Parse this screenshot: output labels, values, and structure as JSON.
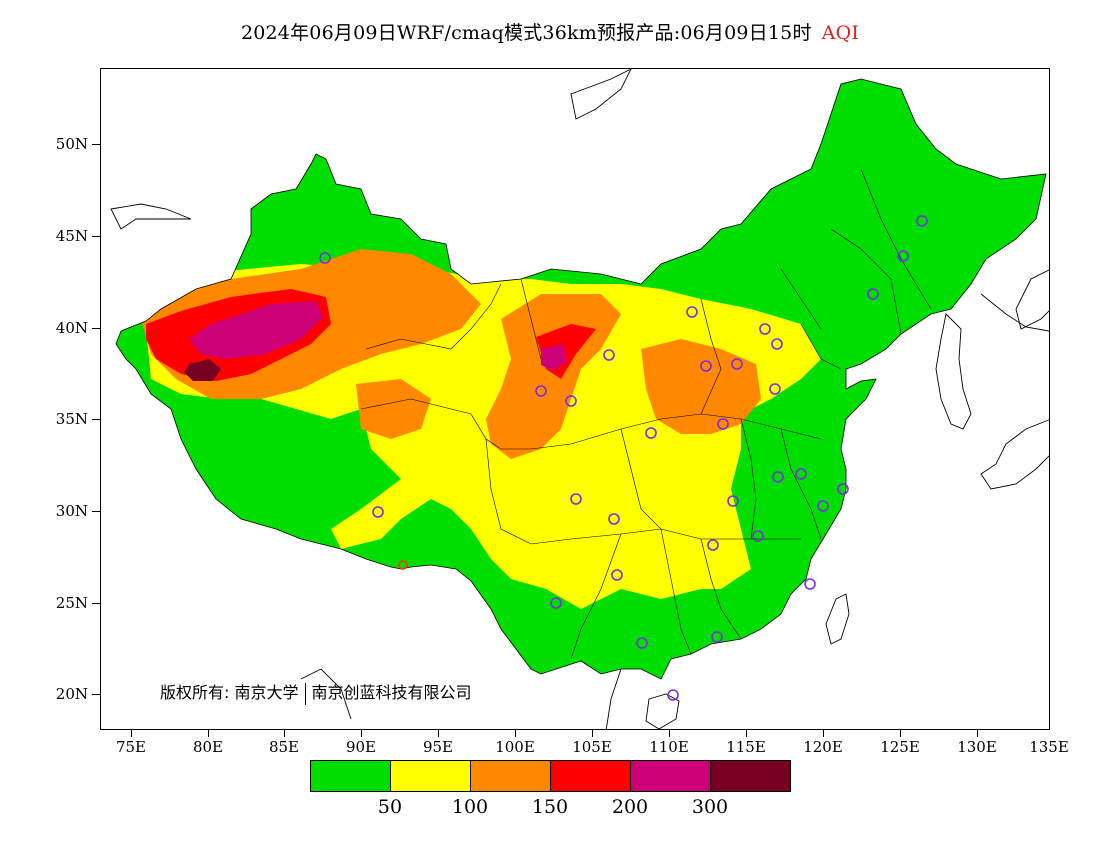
{
  "title": {
    "main": "2024年06月09日WRF/cmaq模式36km预报产品:06月09日15时",
    "metric": "AQI"
  },
  "axes": {
    "lat_labels": [
      "50N",
      "45N",
      "40N",
      "35N",
      "30N",
      "25N",
      "20N"
    ],
    "lon_labels": [
      "75E",
      "80E",
      "85E",
      "90E",
      "95E",
      "100E",
      "105E",
      "110E",
      "115E",
      "120E",
      "125E",
      "130E",
      "135E"
    ]
  },
  "copyright": {
    "label": "版权所有:",
    "org1": "南京大学",
    "org2": "南京创蓝科技有限公司"
  },
  "legend": {
    "colors": [
      "#00dd00",
      "#ffff00",
      "#ff8800",
      "#ff0000",
      "#cc0077",
      "#770022"
    ],
    "levels": [
      "50",
      "100",
      "150",
      "200",
      "300"
    ]
  },
  "colors": {
    "good": "#00dd00",
    "moderate": "#ffff00",
    "unhealthy_sensitive": "#ff8800",
    "unhealthy": "#ff0000",
    "very_unhealthy": "#cc0077",
    "hazardous": "#770022",
    "station_marker": "#7a2ee0"
  }
}
